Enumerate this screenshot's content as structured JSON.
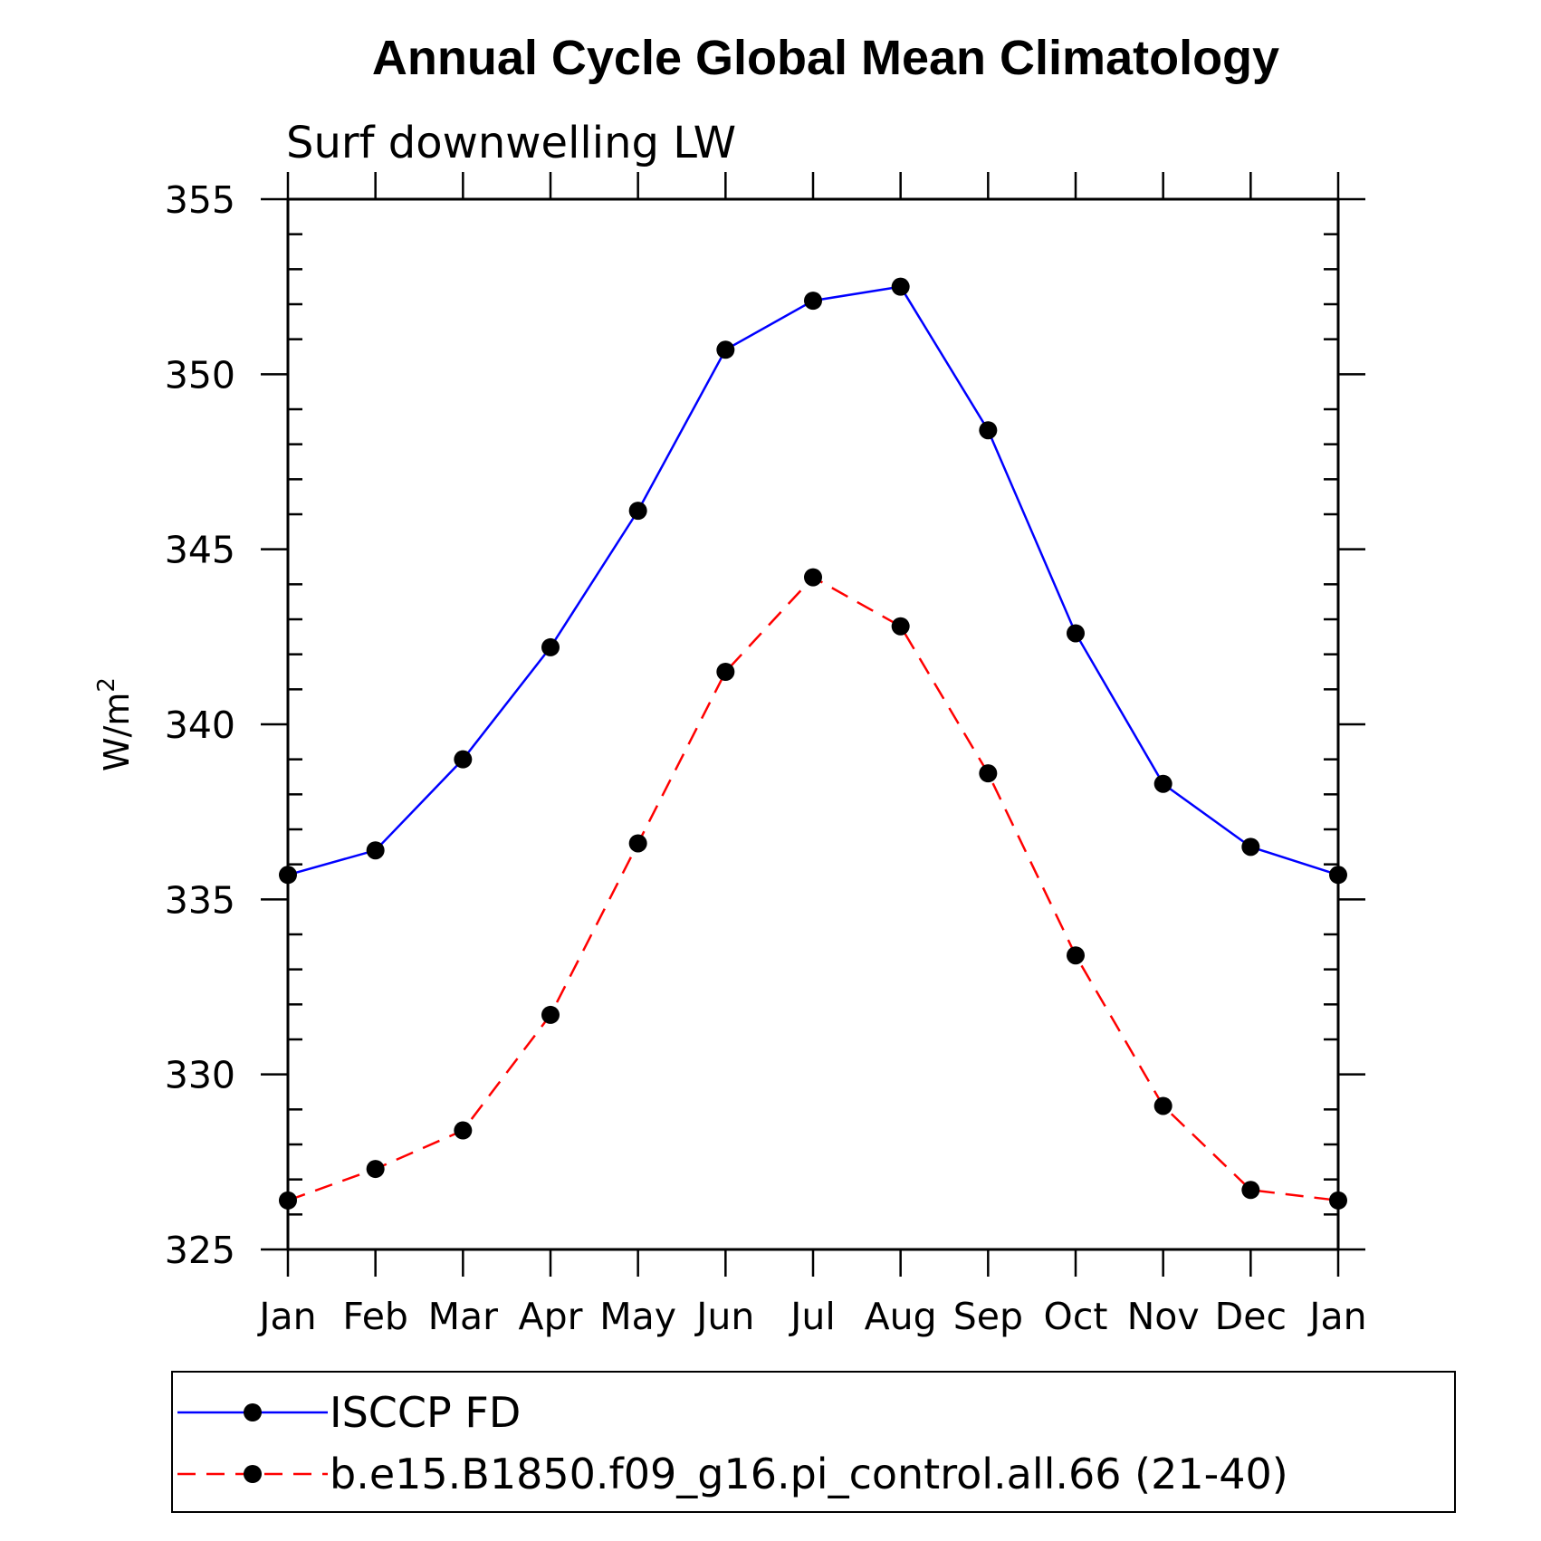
{
  "chart_data": {
    "type": "line",
    "title": "Annual Cycle Global Mean Climatology",
    "subtitle": "Surf downwelling LW",
    "ylabel": "W/m",
    "ylabel_superscript": "2",
    "xlabel": "",
    "categories": [
      "Jan",
      "Feb",
      "Mar",
      "Apr",
      "May",
      "Jun",
      "Jul",
      "Aug",
      "Sep",
      "Oct",
      "Nov",
      "Dec",
      "Jan"
    ],
    "ylim": [
      325,
      355
    ],
    "yticks": [
      325,
      330,
      335,
      340,
      345,
      350,
      355
    ],
    "series": [
      {
        "name": "ISCCP FD",
        "color": "#0000ff",
        "dash": "solid",
        "marker": "circle",
        "values": [
          335.7,
          336.4,
          339.0,
          342.2,
          346.1,
          350.7,
          352.1,
          352.5,
          348.4,
          342.6,
          338.3,
          336.5,
          335.7
        ]
      },
      {
        "name": "b.e15.B1850.f09_g16.pi_control.all.66 (21-40)",
        "color": "#ff0000",
        "dash": "dashed",
        "marker": "circle",
        "values": [
          326.4,
          327.3,
          328.4,
          331.7,
          336.6,
          341.5,
          344.2,
          342.8,
          338.6,
          333.4,
          329.1,
          326.7,
          326.4
        ]
      }
    ],
    "legend_position": "bottom"
  }
}
